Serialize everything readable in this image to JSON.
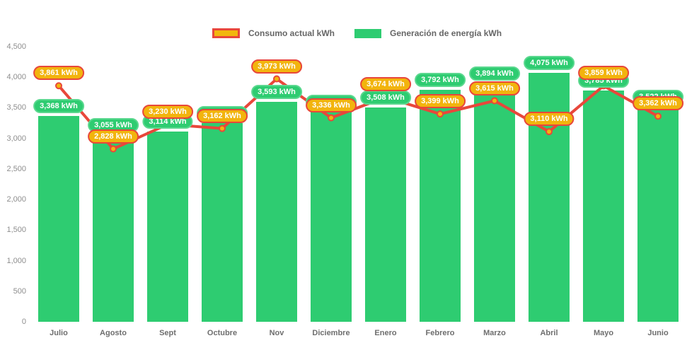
{
  "chart_data": {
    "type": "bar",
    "subtype": "bar+line combo",
    "title": "",
    "categories": [
      "Julio",
      "Agosto",
      "Sept",
      "Octubre",
      "Nov",
      "Diciembre",
      "Enero",
      "Febrero",
      "Marzo",
      "Abril",
      "Mayo",
      "Junio"
    ],
    "series": [
      {
        "name": "Consumo actual kWh",
        "type": "line",
        "values": [
          3861,
          2828,
          3230,
          3162,
          3973,
          3336,
          3674,
          3399,
          3615,
          3110,
          3859,
          3362
        ],
        "labels": [
          "3,861 kWh",
          "2,828 kWh",
          "3,230 kWh",
          "3,162 kWh",
          "3,973 kWh",
          "3,336 kWh",
          "3,674 kWh",
          "3,399 kWh",
          "3,615 kWh",
          "3,110 kWh",
          "3,859 kWh",
          "3,362 kWh"
        ]
      },
      {
        "name": "Generación de energía kWh",
        "type": "bar",
        "values": [
          3368,
          3055,
          3114,
          3248,
          3593,
          3432,
          3508,
          3792,
          3894,
          4075,
          3785,
          3522
        ],
        "labels": [
          "3,368 kWh",
          "3,055 kWh",
          "3,114 kWh",
          "3,248 kWh",
          "3,593 kWh",
          "3,432 kWh",
          "3,508 kWh",
          "3,792 kWh",
          "3,894 kWh",
          "4,075 kWh",
          "3,785 kWh",
          "3,522 kWh"
        ]
      }
    ],
    "ylim": [
      0,
      4500
    ],
    "y_ticks": [
      {
        "label": "4,500",
        "value": 4500
      },
      {
        "label": "4,000",
        "value": 4000
      },
      {
        "label": "3,500",
        "value": 3500
      },
      {
        "label": "3,000",
        "value": 3000
      },
      {
        "label": "2,500",
        "value": 2500
      },
      {
        "label": "2,000",
        "value": 2000
      },
      {
        "label": "1,500",
        "value": 1500
      },
      {
        "label": "1,000",
        "value": 1000
      },
      {
        "label": "500",
        "value": 500
      },
      {
        "label": "0",
        "value": 0
      }
    ],
    "grid": false,
    "legend_position": "top-center"
  },
  "colors": {
    "bar_green": "#2ECC71",
    "bar_pill_border": "#5BD88F",
    "line_red": "#E8473B",
    "marker_yellow": "#F2B70D",
    "consumo_pill_bg": "#F2B40D",
    "axis_text": "#8E8E8E",
    "month_text": "#6E6E6E",
    "legend_text": "#666666"
  }
}
